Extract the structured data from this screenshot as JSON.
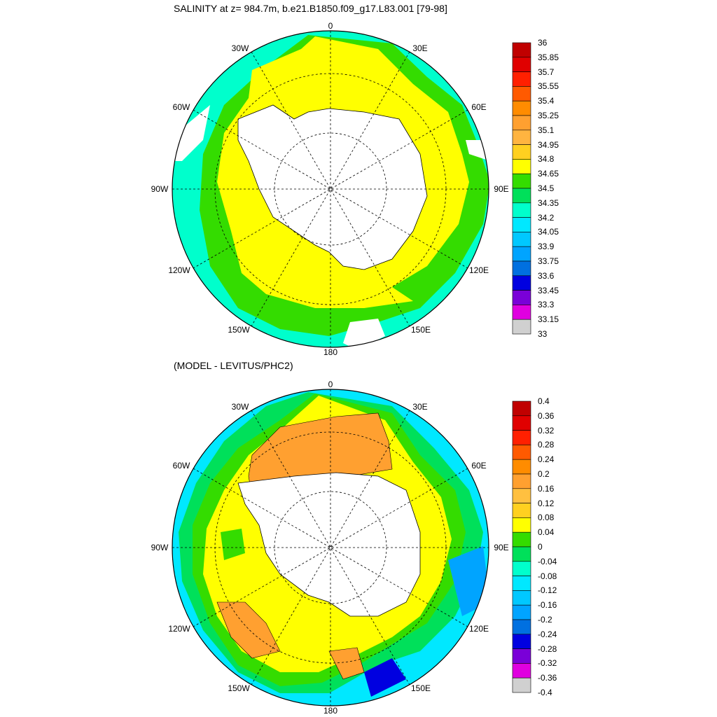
{
  "panel1": {
    "title": "SALINITY at z= 984.7m, b.e21.B1850.f09_g17.L83.001 [79-98]",
    "lon_labels": [
      "0",
      "30E",
      "60E",
      "90E",
      "120E",
      "150E",
      "180",
      "150W",
      "120W",
      "90W",
      "60W",
      "30W"
    ],
    "colorbar": {
      "ticks": [
        "36",
        "35.85",
        "35.7",
        "35.55",
        "35.4",
        "35.25",
        "35.1",
        "34.95",
        "34.8",
        "34.65",
        "34.5",
        "34.35",
        "34.2",
        "34.05",
        "33.9",
        "33.75",
        "33.6",
        "33.45",
        "33.3",
        "33.15",
        "33"
      ],
      "colors": [
        "#c00000",
        "#e00000",
        "#ff2000",
        "#ff5a00",
        "#ff8c00",
        "#ffa030",
        "#ffb440",
        "#ffd020",
        "#ffff00",
        "#34dc00",
        "#00e05a",
        "#00ffcc",
        "#00e8ff",
        "#00c8ff",
        "#00a4ff",
        "#0070e0",
        "#0000e0",
        "#7a00d8",
        "#e000e0",
        "#d0d0d0",
        "#707070"
      ]
    }
  },
  "panel2": {
    "title": "(MODEL - LEVITUS/PHC2)",
    "lon_labels": [
      "0",
      "30E",
      "60E",
      "90E",
      "120E",
      "150E",
      "180",
      "150W",
      "120W",
      "90W",
      "60W",
      "30W"
    ],
    "colorbar": {
      "ticks": [
        "0.4",
        "0.36",
        "0.32",
        "0.28",
        "0.24",
        "0.2",
        "0.16",
        "0.12",
        "0.08",
        "0.04",
        "0",
        "-0.04",
        "-0.08",
        "-0.12",
        "-0.16",
        "-0.2",
        "-0.24",
        "-0.28",
        "-0.32",
        "-0.36",
        "-0.4"
      ],
      "colors": [
        "#c00000",
        "#e00000",
        "#ff2000",
        "#ff5a00",
        "#ff8c00",
        "#ffa030",
        "#ffc040",
        "#ffd020",
        "#ffff00",
        "#34dc00",
        "#00e05a",
        "#00ffcc",
        "#00e8ff",
        "#00c8ff",
        "#00a4ff",
        "#0070e0",
        "#0000e0",
        "#7a00d8",
        "#e000e0",
        "#d0d0d0",
        "#707070"
      ]
    }
  }
}
